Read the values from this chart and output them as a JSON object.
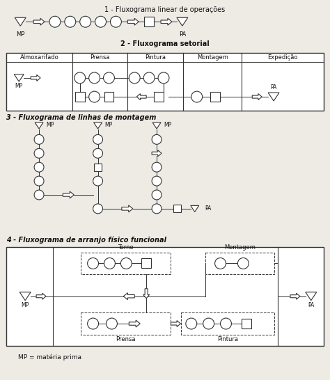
{
  "title1": "1 - Fluxograma linear de operações",
  "title2": "2 - Fluxograma setorial",
  "title3": "3 - Fluxograma de linhas de montagem",
  "title4": "4 - Fluxograma de arranjo físico funcional",
  "footer": "MP = matéria prima",
  "sec2_headers": [
    "Almoxarifado",
    "Prensa",
    "Pintura",
    "Montagem",
    "Expedição"
  ],
  "bg_color": "#eeebe5",
  "line_color": "#333333",
  "text_color": "#111111",
  "white": "#ffffff"
}
